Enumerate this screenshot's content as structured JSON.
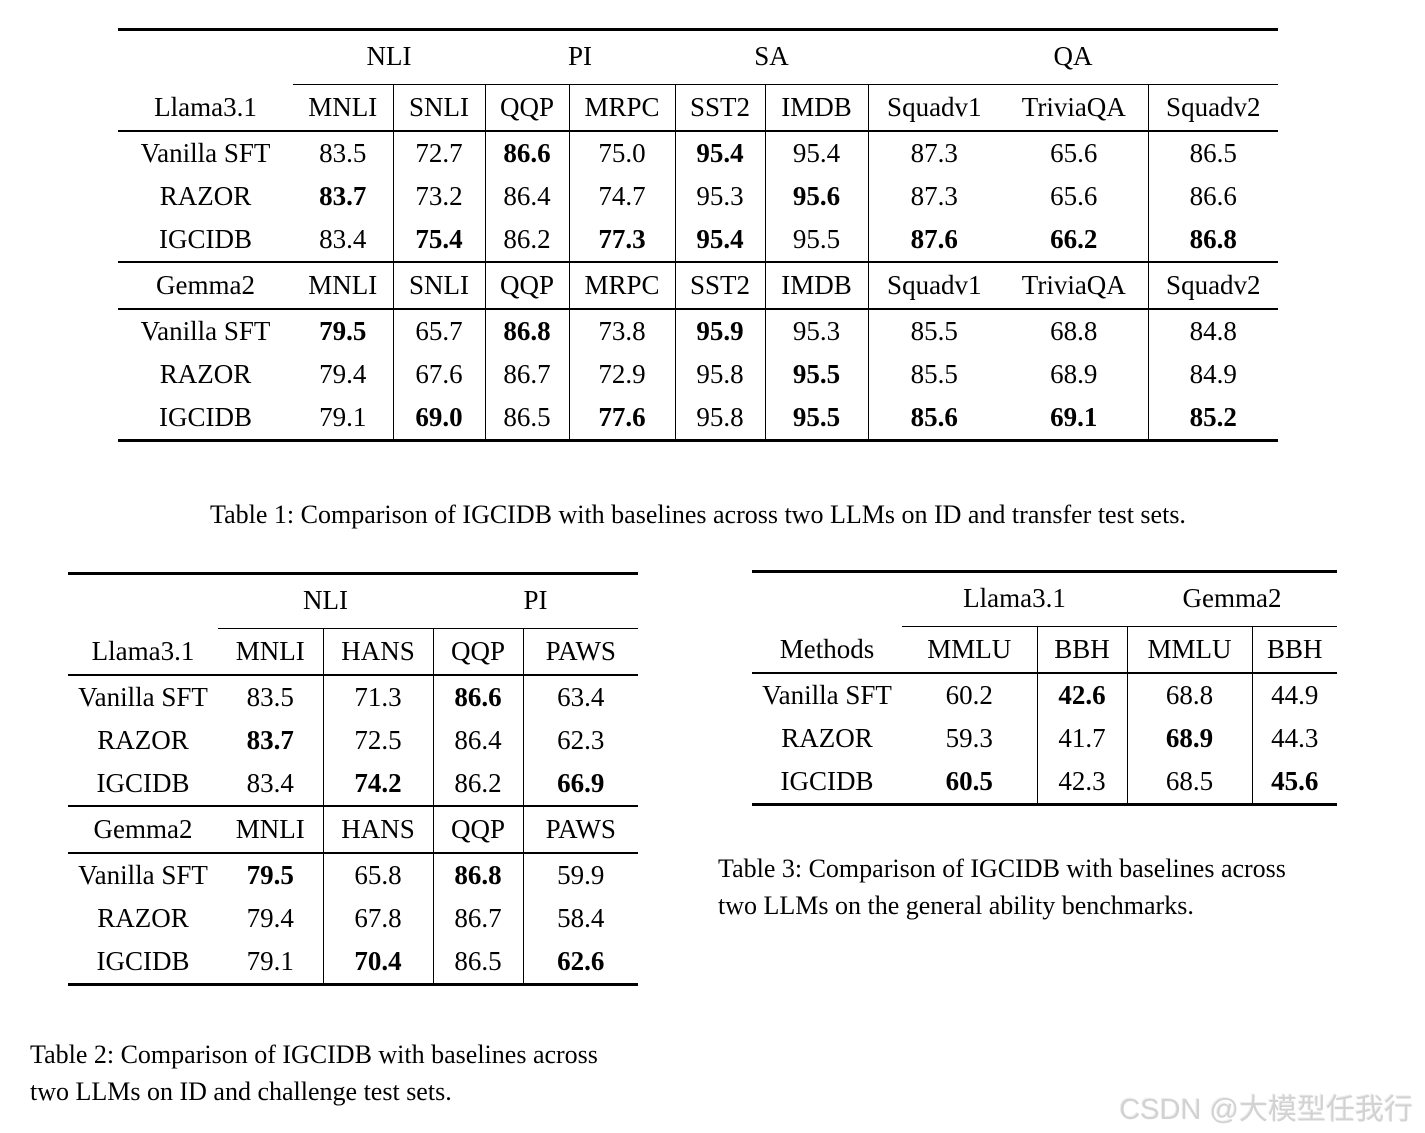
{
  "table1": {
    "caption": "Table 1: Comparison of IGCIDB with baselines across two LLMs on ID and transfer test sets.",
    "group_headers": [
      "NLI",
      "PI",
      "SA",
      "QA"
    ],
    "column_headers": [
      "MNLI",
      "SNLI",
      "QQP",
      "MRPC",
      "SST2",
      "IMDB",
      "Squadv1",
      "TriviaQA",
      "Squadv2"
    ],
    "sections": [
      {
        "model": "Llama3.1",
        "rows": [
          {
            "method": "Vanilla SFT",
            "cells": [
              {
                "v": "83.5"
              },
              {
                "v": "72.7"
              },
              {
                "v": "86.6",
                "b": true
              },
              {
                "v": "75.0"
              },
              {
                "v": "95.4",
                "b": true
              },
              {
                "v": "95.4"
              },
              {
                "v": "87.3"
              },
              {
                "v": "65.6"
              },
              {
                "v": "86.5"
              }
            ]
          },
          {
            "method": "RAZOR",
            "cells": [
              {
                "v": "83.7",
                "b": true
              },
              {
                "v": "73.2"
              },
              {
                "v": "86.4"
              },
              {
                "v": "74.7"
              },
              {
                "v": "95.3"
              },
              {
                "v": "95.6",
                "b": true
              },
              {
                "v": "87.3"
              },
              {
                "v": "65.6"
              },
              {
                "v": "86.6"
              }
            ]
          },
          {
            "method": "IGCIDB",
            "cells": [
              {
                "v": "83.4"
              },
              {
                "v": "75.4",
                "b": true
              },
              {
                "v": "86.2"
              },
              {
                "v": "77.3",
                "b": true
              },
              {
                "v": "95.4",
                "b": true
              },
              {
                "v": "95.5"
              },
              {
                "v": "87.6",
                "b": true
              },
              {
                "v": "66.2",
                "b": true
              },
              {
                "v": "86.8",
                "b": true
              }
            ]
          }
        ]
      },
      {
        "model": "Gemma2",
        "rows": [
          {
            "method": "Vanilla SFT",
            "cells": [
              {
                "v": "79.5",
                "b": true
              },
              {
                "v": "65.7"
              },
              {
                "v": "86.8",
                "b": true
              },
              {
                "v": "73.8"
              },
              {
                "v": "95.9",
                "b": true
              },
              {
                "v": "95.3"
              },
              {
                "v": "85.5"
              },
              {
                "v": "68.8"
              },
              {
                "v": "84.8"
              }
            ]
          },
          {
            "method": "RAZOR",
            "cells": [
              {
                "v": "79.4"
              },
              {
                "v": "67.6"
              },
              {
                "v": "86.7"
              },
              {
                "v": "72.9"
              },
              {
                "v": "95.8"
              },
              {
                "v": "95.5",
                "b": true
              },
              {
                "v": "85.5"
              },
              {
                "v": "68.9"
              },
              {
                "v": "84.9"
              }
            ]
          },
          {
            "method": "IGCIDB",
            "cells": [
              {
                "v": "79.1"
              },
              {
                "v": "69.0",
                "b": true
              },
              {
                "v": "86.5"
              },
              {
                "v": "77.6",
                "b": true
              },
              {
                "v": "95.8"
              },
              {
                "v": "95.5",
                "b": true
              },
              {
                "v": "85.6",
                "b": true
              },
              {
                "v": "69.1",
                "b": true
              },
              {
                "v": "85.2",
                "b": true
              }
            ]
          }
        ]
      }
    ]
  },
  "table2": {
    "caption_lines": [
      "Table 2: Comparison of IGCIDB with baselines across",
      "two LLMs on ID and challenge test sets."
    ],
    "group_headers": [
      "NLI",
      "PI"
    ],
    "column_headers": [
      "MNLI",
      "HANS",
      "QQP",
      "PAWS"
    ],
    "sections": [
      {
        "model": "Llama3.1",
        "rows": [
          {
            "method": "Vanilla SFT",
            "cells": [
              {
                "v": "83.5"
              },
              {
                "v": "71.3"
              },
              {
                "v": "86.6",
                "b": true
              },
              {
                "v": "63.4"
              }
            ]
          },
          {
            "method": "RAZOR",
            "cells": [
              {
                "v": "83.7",
                "b": true
              },
              {
                "v": "72.5"
              },
              {
                "v": "86.4"
              },
              {
                "v": "62.3"
              }
            ]
          },
          {
            "method": "IGCIDB",
            "cells": [
              {
                "v": "83.4"
              },
              {
                "v": "74.2",
                "b": true
              },
              {
                "v": "86.2"
              },
              {
                "v": "66.9",
                "b": true
              }
            ]
          }
        ]
      },
      {
        "model": "Gemma2",
        "rows": [
          {
            "method": "Vanilla SFT",
            "cells": [
              {
                "v": "79.5",
                "b": true
              },
              {
                "v": "65.8"
              },
              {
                "v": "86.8",
                "b": true
              },
              {
                "v": "59.9"
              }
            ]
          },
          {
            "method": "RAZOR",
            "cells": [
              {
                "v": "79.4"
              },
              {
                "v": "67.8"
              },
              {
                "v": "86.7"
              },
              {
                "v": "58.4"
              }
            ]
          },
          {
            "method": "IGCIDB",
            "cells": [
              {
                "v": "79.1"
              },
              {
                "v": "70.4",
                "b": true
              },
              {
                "v": "86.5"
              },
              {
                "v": "62.6",
                "b": true
              }
            ]
          }
        ]
      }
    ]
  },
  "table3": {
    "caption_lines": [
      "Table 3: Comparison of IGCIDB with baselines across",
      "two LLMs on the general ability benchmarks."
    ],
    "methods_label": "Methods",
    "group_headers": [
      "Llama3.1",
      "Gemma2"
    ],
    "column_headers": [
      "MMLU",
      "BBH",
      "MMLU",
      "BBH"
    ],
    "rows": [
      {
        "method": "Vanilla SFT",
        "cells": [
          {
            "v": "60.2"
          },
          {
            "v": "42.6",
            "b": true
          },
          {
            "v": "68.8"
          },
          {
            "v": "44.9"
          }
        ]
      },
      {
        "method": "RAZOR",
        "cells": [
          {
            "v": "59.3"
          },
          {
            "v": "41.7"
          },
          {
            "v": "68.9",
            "b": true
          },
          {
            "v": "44.3"
          }
        ]
      },
      {
        "method": "IGCIDB",
        "cells": [
          {
            "v": "60.5",
            "b": true
          },
          {
            "v": "42.3"
          },
          {
            "v": "68.5"
          },
          {
            "v": "45.6",
            "b": true
          }
        ]
      }
    ]
  },
  "watermark": {
    "text": "CSDN @大模型任我行"
  }
}
